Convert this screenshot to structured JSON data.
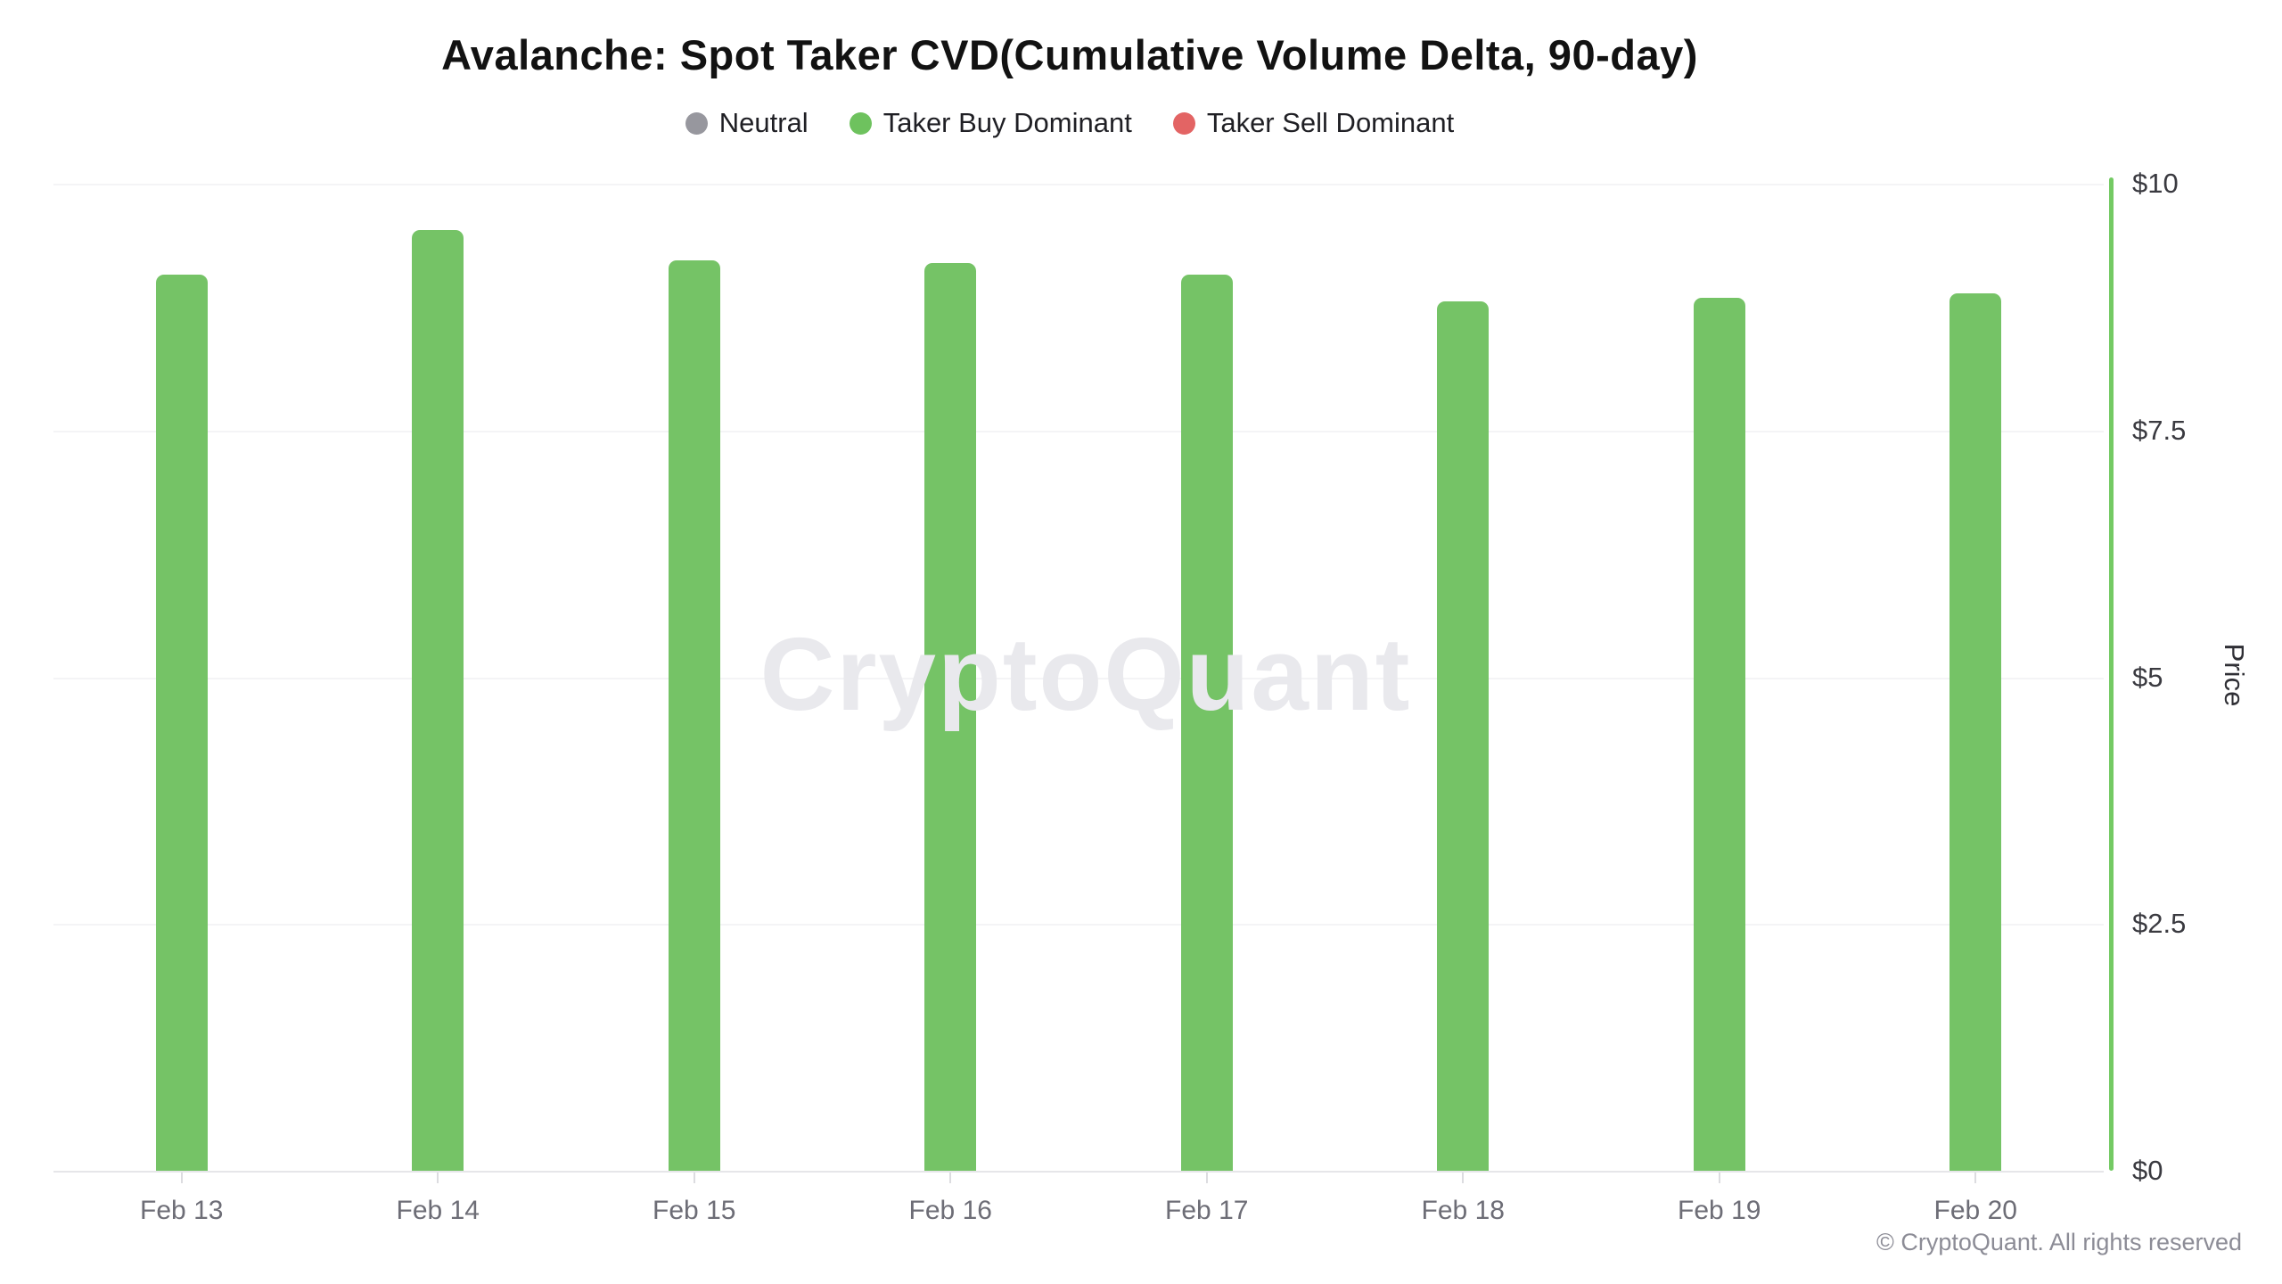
{
  "title": "Avalanche: Spot Taker CVD(Cumulative Volume Delta, 90-day)",
  "legend": {
    "items": [
      {
        "id": "neutral",
        "label": "Neutral",
        "color": "#97979e"
      },
      {
        "id": "taker-buy-dominant",
        "label": "Taker Buy Dominant",
        "color": "#6ec25e"
      },
      {
        "id": "taker-sell-dominant",
        "label": "Taker Sell Dominant",
        "color": "#e36464"
      }
    ]
  },
  "chart_data": {
    "type": "bar",
    "title": "Avalanche: Spot Taker CVD(Cumulative Volume Delta, 90-day)",
    "categories": [
      "Feb 13",
      "Feb 14",
      "Feb 15",
      "Feb 16",
      "Feb 17",
      "Feb 18",
      "Feb 19",
      "Feb 20"
    ],
    "series": [
      {
        "name": "Taker Buy Dominant",
        "values": [
          9.08,
          9.53,
          9.22,
          9.2,
          9.08,
          8.81,
          8.84,
          8.89
        ]
      }
    ],
    "xlabel": "",
    "ylabel": "Price",
    "ylim": [
      0,
      10
    ],
    "yticks": [
      {
        "label": "$10",
        "value": 10
      },
      {
        "label": "$7.5",
        "value": 7.5
      },
      {
        "label": "$5",
        "value": 5
      },
      {
        "label": "$2.5",
        "value": 2.5
      },
      {
        "label": "$0",
        "value": 0
      }
    ],
    "grid": true,
    "legend_position": "top",
    "bar_color": "#75c366"
  },
  "watermark": "CryptoQuant",
  "footer": {
    "copyright": "© CryptoQuant. All rights reserved"
  },
  "colors": {
    "bar": "#75c366",
    "axis_line_green": "#74ca64",
    "gridline": "#f4f4f6",
    "axis_bottom": "#e6e6e9",
    "y_tick_label": "#3a3a40",
    "x_label": "#6d6d76",
    "watermark": "#e9e9ed",
    "footer_text": "#8c8c96"
  }
}
